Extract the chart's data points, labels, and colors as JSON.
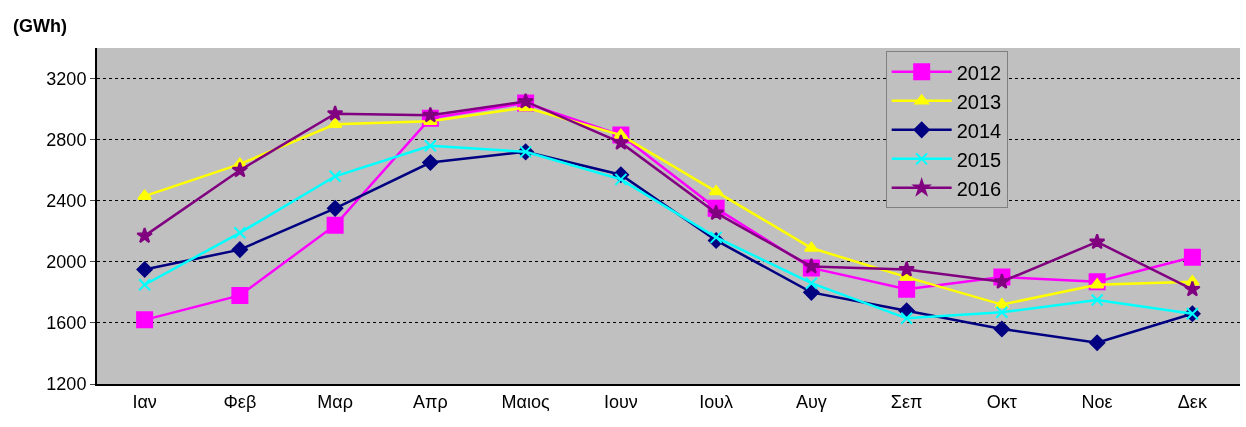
{
  "chart_data": {
    "type": "line",
    "ylabel": "(GWh)",
    "categories": [
      "Ιαν",
      "Φεβ",
      "Μαρ",
      "Απρ",
      "Μαιος",
      "Ιουν",
      "Ιουλ",
      "Αυγ",
      "Σεπ",
      "Οκτ",
      "Νοε",
      "Δεκ"
    ],
    "series": [
      {
        "name": "2012",
        "color": "#ff00ff",
        "marker": "square",
        "values": [
          1620,
          1780,
          2240,
          2940,
          3040,
          2830,
          2350,
          1960,
          1820,
          1900,
          1870,
          2030
        ]
      },
      {
        "name": "2013",
        "color": "#ffff00",
        "marker": "triangle",
        "values": [
          2430,
          2640,
          2900,
          2920,
          3010,
          2830,
          2460,
          2090,
          1900,
          1720,
          1850,
          1870
        ]
      },
      {
        "name": "2014",
        "color": "#000080",
        "marker": "diamond",
        "values": [
          1950,
          2080,
          2350,
          2650,
          2720,
          2570,
          2140,
          1800,
          1680,
          1560,
          1470,
          1660
        ]
      },
      {
        "name": "2015",
        "color": "#00ffff",
        "marker": "cross",
        "values": [
          1850,
          2190,
          2560,
          2760,
          2720,
          2540,
          2160,
          1860,
          1630,
          1670,
          1750,
          1660
        ]
      },
      {
        "name": "2016",
        "color": "#800080",
        "marker": "star",
        "values": [
          2170,
          2600,
          2970,
          2960,
          3050,
          2780,
          2320,
          1970,
          1950,
          1870,
          2130,
          1820
        ]
      }
    ],
    "ylim": [
      1200,
      3400
    ],
    "yticks": [
      1200,
      1600,
      2000,
      2400,
      2800,
      3200
    ],
    "grid": "y",
    "legend": "top right",
    "line_style": "solid"
  }
}
